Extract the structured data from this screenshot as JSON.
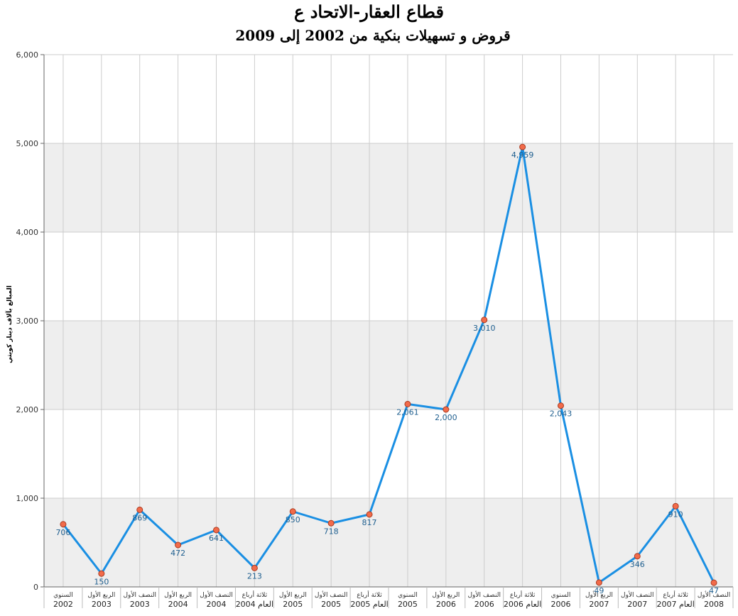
{
  "chart_data": {
    "type": "line",
    "title": "قطاع العقار-الاتحاد ع",
    "subtitle": "قروض و تسهيلات بنكية من 2002 إلى 2009",
    "ylabel": "المبالغ بآلاف دينار كويتي",
    "xlabel": "",
    "ylim": [
      0,
      6000
    ],
    "yticks": [
      0,
      1000,
      2000,
      3000,
      4000,
      5000,
      6000
    ],
    "ytick_labels": [
      "0",
      "1,000",
      "2,000",
      "3,000",
      "4,000",
      "5,000",
      "6,000"
    ],
    "grid": true,
    "categories": [
      {
        "period": "السنوي",
        "year": "2002"
      },
      {
        "period": "الربع الأول",
        "year": "2003"
      },
      {
        "period": "النصف الأول",
        "year": "2003"
      },
      {
        "period": "الربع الأول",
        "year": "2004"
      },
      {
        "period": "النصف الأول",
        "year": "2004"
      },
      {
        "period": "ثلاثة أرباع",
        "year": "العام 2004"
      },
      {
        "period": "الربع الأول",
        "year": "2005"
      },
      {
        "period": "النصف الأول",
        "year": "2005"
      },
      {
        "period": "ثلاثة أرباع",
        "year": "العام 2005"
      },
      {
        "period": "السنوي",
        "year": "2005"
      },
      {
        "period": "الربع الأول",
        "year": "2006"
      },
      {
        "period": "النصف الأول",
        "year": "2006"
      },
      {
        "period": "ثلاثة أرباع",
        "year": "العام 2006"
      },
      {
        "period": "السنوي",
        "year": "2006"
      },
      {
        "period": "الربع الأول",
        "year": "2007"
      },
      {
        "period": "النصف الأول",
        "year": "2007"
      },
      {
        "period": "ثلاثة أرباع",
        "year": "العام 2007"
      },
      {
        "period": "النصف الأول",
        "year": "2008"
      }
    ],
    "series": [
      {
        "values": [
          706,
          150,
          869,
          472,
          641,
          213,
          850,
          718,
          817,
          2061,
          2000,
          3010,
          4959,
          2043,
          49,
          346,
          910,
          47
        ],
        "labels": [
          "706",
          "150",
          "869",
          "472",
          "641",
          "213",
          "850",
          "718",
          "817",
          "2,061",
          "2,000",
          "3,010",
          "4,959",
          "2,043",
          "49",
          "346",
          "910",
          "47"
        ],
        "color": "#1a8fe3",
        "marker_fill": "#f26b4a",
        "marker_stroke": "#a83a20"
      }
    ],
    "band_color": "#eeeeee",
    "grid_color": "#cccccc"
  }
}
